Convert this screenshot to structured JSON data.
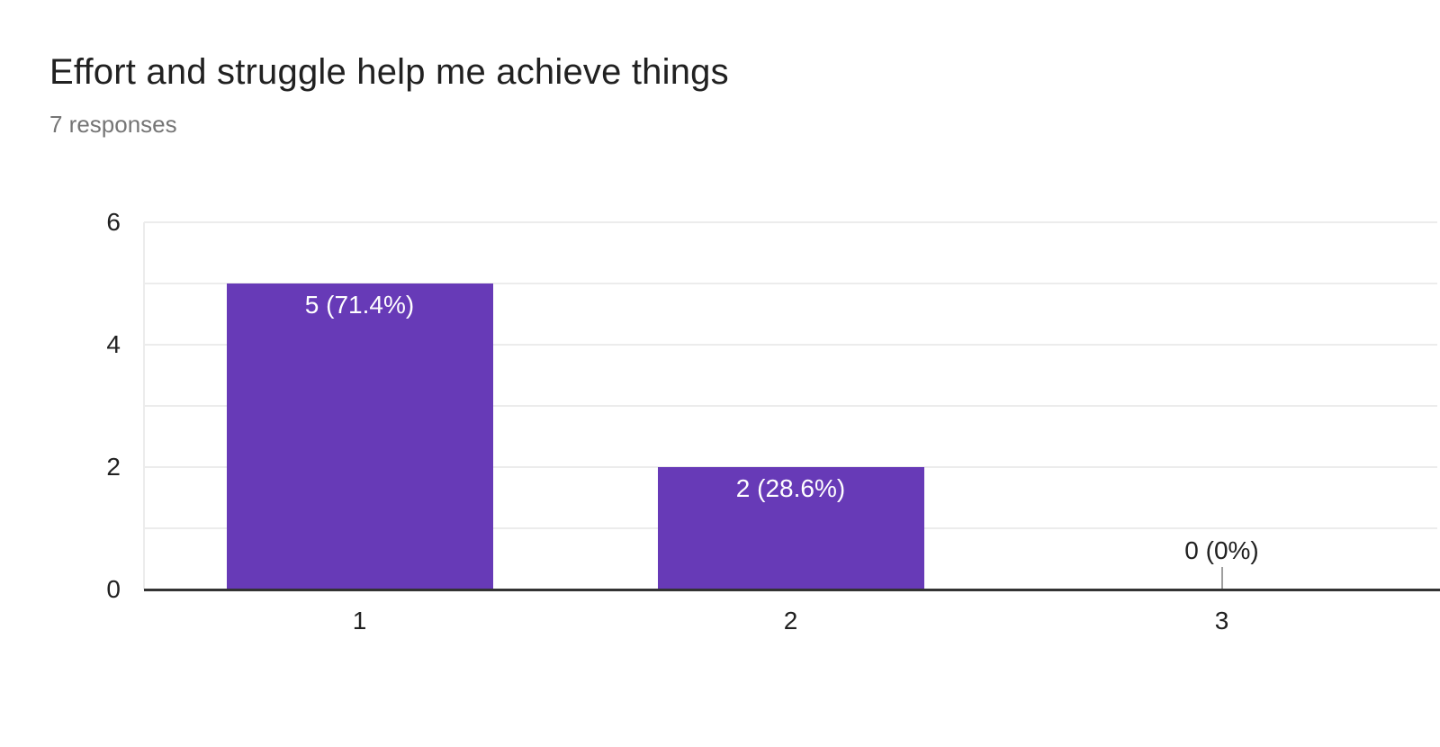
{
  "header": {
    "title": "Effort and struggle help me achieve things",
    "subtitle": "7 responses"
  },
  "chart_data": {
    "type": "bar",
    "title": "Effort and struggle help me achieve things",
    "subtitle": "7 responses",
    "total_responses": 7,
    "categories": [
      "1",
      "2",
      "3"
    ],
    "values": [
      5,
      2,
      0
    ],
    "data_labels": [
      "5 (71.4%)",
      "2 (28.6%)",
      "0 (0%)"
    ],
    "percentages": [
      71.4,
      28.6,
      0
    ],
    "xlabel": "",
    "ylabel": "",
    "ylim": [
      0,
      6
    ],
    "yticks": [
      0,
      2,
      4,
      6
    ],
    "grid": true,
    "legend": "none",
    "bar_color": "#673ab7"
  },
  "colors": {
    "bar": "#673ab7",
    "grid": "#ececec",
    "axis": "#333333",
    "stem": "#9e9e9e",
    "title": "#212121",
    "subtitle": "#757575",
    "tick": "#212121",
    "label_on_bar": "#ffffff"
  }
}
